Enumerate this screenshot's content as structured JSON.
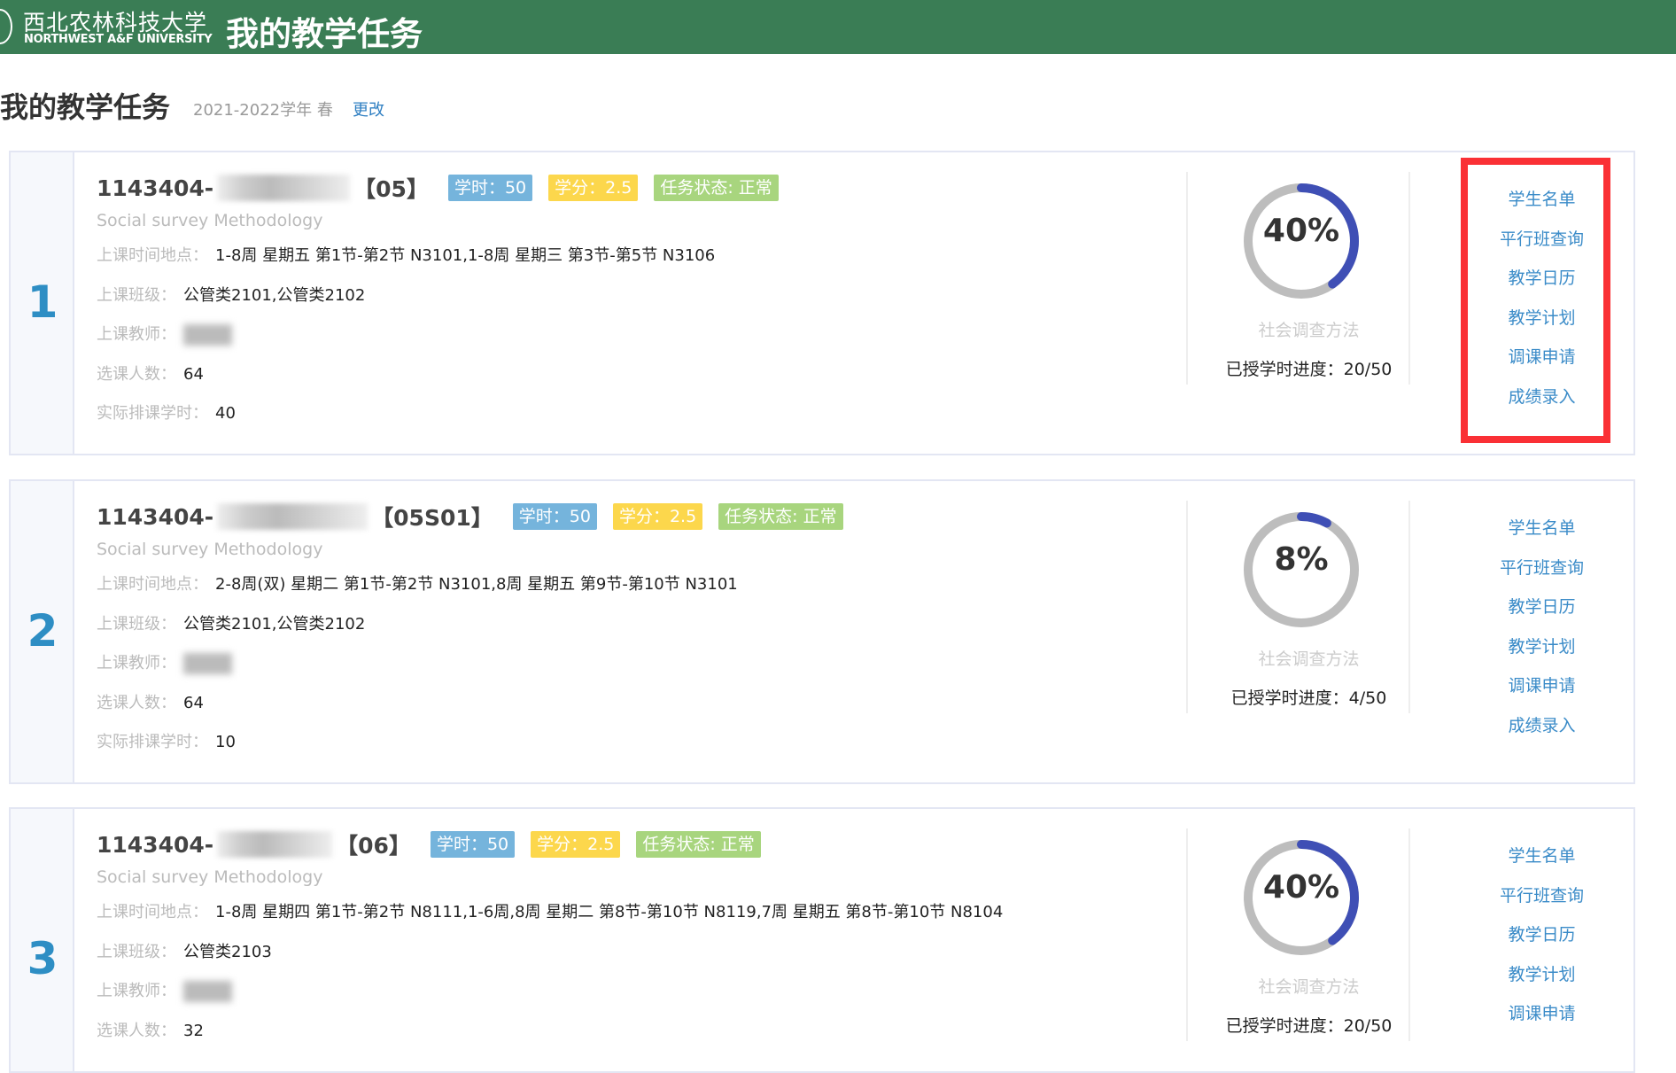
{
  "header": {
    "logo_cn": "西北农林科技大学",
    "logo_en": "NORTHWEST A&F UNIVERSITY",
    "title": "我的教学任务"
  },
  "page": {
    "title": "我的教学任务",
    "term": "2021-2022学年 春",
    "change_label": "更改"
  },
  "labels": {
    "schedule": "上课时间地点：",
    "classes": "上课班级：",
    "teacher": "上课教师：",
    "enrolled": "选课人数：",
    "actual_hours": "实际排课学时：",
    "progress_prefix": "已授学时进度："
  },
  "accent_colors": {
    "header": "#3a7d55",
    "ring": "#3f4fb5",
    "ring_track": "#bdbdbd",
    "highlight_box": "#fa3035"
  },
  "tasks": [
    {
      "index": "1",
      "code_prefix": "1143404-",
      "code_suffix": "【05】",
      "hours": "学时：50",
      "credit": "学分：2.5",
      "status": "任务状态: 正常",
      "english_name": "Social survey Methodology",
      "schedule": "1-8周 星期五 第1节-第2节 N3101,1-8周 星期三 第3节-第5节 N3106",
      "classes": "公管类2101,公管类2102",
      "enrolled": "64",
      "actual_hours": "40",
      "percent_label": "40%",
      "percent": 40,
      "course_name": "社会调查方法",
      "progress": "20/50",
      "highlighted": true,
      "links": [
        "学生名单",
        "平行班查询",
        "教学日历",
        "教学计划",
        "调课申请",
        "成绩录入"
      ]
    },
    {
      "index": "2",
      "code_prefix": "1143404-",
      "code_suffix": "【05S01】",
      "hours": "学时：50",
      "credit": "学分：2.5",
      "status": "任务状态: 正常",
      "english_name": "Social survey Methodology",
      "schedule": "2-8周(双) 星期二 第1节-第2节 N3101,8周 星期五 第9节-第10节 N3101",
      "classes": "公管类2101,公管类2102",
      "enrolled": "64",
      "actual_hours": "10",
      "percent_label": "8%",
      "percent": 8,
      "course_name": "社会调查方法",
      "progress": "4/50",
      "highlighted": false,
      "links": [
        "学生名单",
        "平行班查询",
        "教学日历",
        "教学计划",
        "调课申请",
        "成绩录入"
      ]
    },
    {
      "index": "3",
      "code_prefix": "1143404-",
      "code_suffix": "【06】",
      "hours": "学时：50",
      "credit": "学分：2.5",
      "status": "任务状态: 正常",
      "english_name": "Social survey Methodology",
      "schedule": "1-8周 星期四 第1节-第2节 N8111,1-6周,8周 星期二 第8节-第10节 N8119,7周 星期五 第8节-第10节 N8104",
      "classes": "公管类2103",
      "enrolled": "32",
      "percent_label": "40%",
      "percent": 40,
      "course_name": "社会调查方法",
      "progress": "20/50",
      "highlighted": false,
      "links": [
        "学生名单",
        "平行班查询",
        "教学日历",
        "教学计划",
        "调课申请"
      ]
    }
  ]
}
